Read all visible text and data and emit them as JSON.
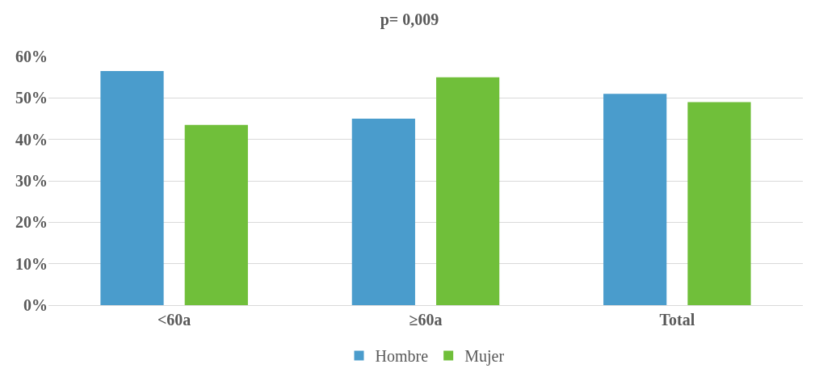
{
  "chart_data": {
    "type": "bar",
    "title": "p= 0,009",
    "categories": [
      "<60a",
      "≥60a",
      "Total"
    ],
    "series": [
      {
        "name": "Hombre",
        "color": "#4a9ccc",
        "values": [
          56.5,
          45,
          51
        ]
      },
      {
        "name": "Mujer",
        "color": "#70bf3a",
        "values": [
          43.5,
          55,
          49
        ]
      }
    ],
    "ylim": [
      0,
      60
    ],
    "yticks": [
      {
        "value": 0,
        "label": "0%"
      },
      {
        "value": 10,
        "label": "10%"
      },
      {
        "value": 20,
        "label": "20%"
      },
      {
        "value": 30,
        "label": "30%"
      },
      {
        "value": 40,
        "label": "40%"
      },
      {
        "value": 50,
        "label": "50%"
      },
      {
        "value": 60,
        "label": "60%"
      }
    ],
    "grid": "y",
    "legend": "bottom"
  }
}
